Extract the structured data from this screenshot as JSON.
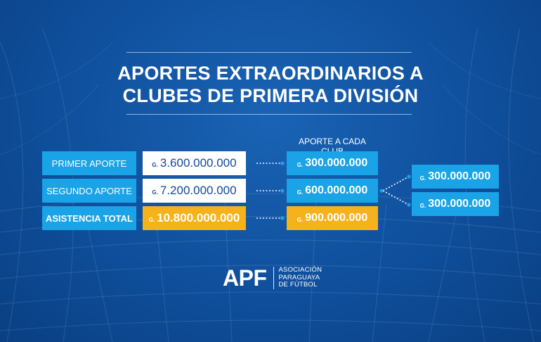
{
  "title": {
    "line1": "APORTES EXTRAORDINARIOS A",
    "line2": "CLUBES DE PRIMERA DIVISIÓN"
  },
  "column_header": "APORTE A CADA CLUB",
  "currency_prefix": "G.",
  "rows": [
    {
      "label": "PRIMER APORTE",
      "amount": "3.600.000.000",
      "per_club": "300.000.000"
    },
    {
      "label": "SEGUNDO APORTE",
      "amount": "7.200.000.000",
      "per_club": "600.000.000"
    },
    {
      "label": "ASISTENCIA TOTAL",
      "amount": "10.800.000.000",
      "per_club": "900.000.000"
    }
  ],
  "split": [
    {
      "amount": "300.000.000"
    },
    {
      "amount": "300.000.000"
    }
  ],
  "logo": {
    "mark": "APF",
    "name_lines": [
      "ASOCIACIÓN",
      "PARAGUAYA",
      "DE FÚTBOL"
    ]
  },
  "colors": {
    "background": "#0f4f9c",
    "label_box": "#1aa3e6",
    "highlight": "#f5b21b",
    "amount_text": "#14479a"
  }
}
